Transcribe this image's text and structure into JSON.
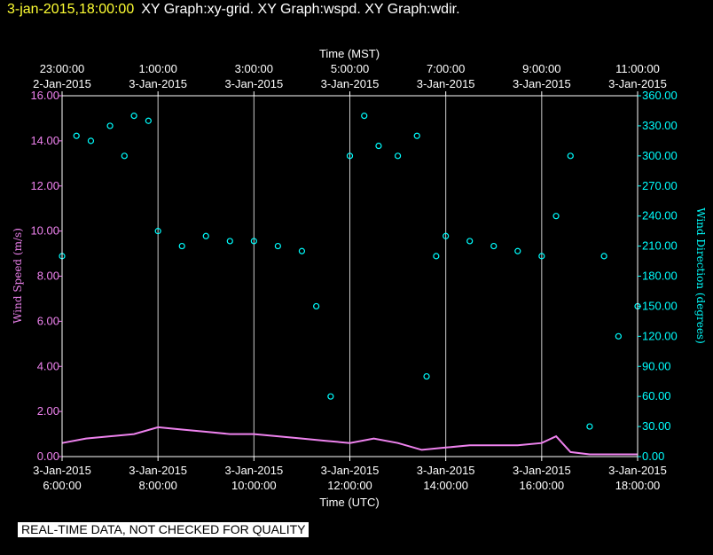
{
  "header": {
    "date_label": "3-jan-2015,18:00:00",
    "graph_titles": "XY Graph:xy-grid.  XY Graph:wspd.  XY Graph:wdir."
  },
  "disclaimer": "REAL-TIME DATA, NOT CHECKED FOR QUALITY",
  "colors": {
    "wind_speed": "#ee82ee",
    "wind_direction": "#00ffff",
    "axes": "#ffffff",
    "header_date": "#ffff33"
  },
  "chart_data": {
    "type": "scatter",
    "top_axis": {
      "label": "Time (MST)",
      "ticks": [
        {
          "time": "23:00:00",
          "date": "2-Jan-2015"
        },
        {
          "time": "1:00:00",
          "date": "3-Jan-2015"
        },
        {
          "time": "3:00:00",
          "date": "3-Jan-2015"
        },
        {
          "time": "5:00:00",
          "date": "3-Jan-2015"
        },
        {
          "time": "7:00:00",
          "date": "3-Jan-2015"
        },
        {
          "time": "9:00:00",
          "date": "3-Jan-2015"
        },
        {
          "time": "11:00:00",
          "date": "3-Jan-2015"
        }
      ]
    },
    "bottom_axis": {
      "label": "Time (UTC)",
      "ticks": [
        {
          "date": "3-Jan-2015",
          "time": "6:00:00"
        },
        {
          "date": "3-Jan-2015",
          "time": "8:00:00"
        },
        {
          "date": "3-Jan-2015",
          "time": "10:00:00"
        },
        {
          "date": "3-Jan-2015",
          "time": "12:00:00"
        },
        {
          "date": "3-Jan-2015",
          "time": "14:00:00"
        },
        {
          "date": "3-Jan-2015",
          "time": "16:00:00"
        },
        {
          "date": "3-Jan-2015",
          "time": "18:00:00"
        }
      ]
    },
    "x_range_utc_hours": [
      6,
      18
    ],
    "left_axis": {
      "label": "Wind Speed (m/s)",
      "range": [
        0,
        16
      ],
      "ticks": [
        "0.00",
        "2.00",
        "4.00",
        "6.00",
        "8.00",
        "10.00",
        "12.00",
        "14.00",
        "16.00"
      ]
    },
    "right_axis": {
      "label": "Wind Direction (degrees)",
      "range": [
        0,
        360
      ],
      "ticks": [
        "0.00",
        "30.00",
        "60.00",
        "90.00",
        "120.00",
        "150.00",
        "180.00",
        "210.00",
        "240.00",
        "270.00",
        "300.00",
        "330.00",
        "360.00"
      ]
    },
    "grid": "vertical lines at each time tick",
    "series": [
      {
        "name": "Wind Speed",
        "axis": "left",
        "marker": "line",
        "x_utc_hours": [
          6.0,
          6.5,
          7.0,
          7.5,
          8.0,
          8.5,
          9.0,
          9.5,
          10.0,
          10.5,
          11.0,
          11.5,
          12.0,
          12.5,
          13.0,
          13.5,
          14.0,
          14.5,
          15.0,
          15.5,
          16.0,
          16.3,
          16.6,
          17.0,
          17.5,
          18.0
        ],
        "values": [
          0.6,
          0.8,
          0.9,
          1.0,
          1.3,
          1.2,
          1.1,
          1.0,
          1.0,
          0.9,
          0.8,
          0.7,
          0.6,
          0.8,
          0.6,
          0.3,
          0.4,
          0.5,
          0.5,
          0.5,
          0.6,
          0.9,
          0.2,
          0.1,
          0.1,
          0.1
        ]
      },
      {
        "name": "Wind Direction",
        "axis": "right",
        "marker": "circle",
        "x_utc_hours": [
          6.0,
          6.3,
          6.6,
          7.0,
          7.3,
          7.5,
          7.8,
          8.0,
          8.5,
          9.0,
          9.5,
          10.0,
          10.5,
          11.0,
          11.3,
          11.6,
          12.0,
          12.3,
          12.6,
          13.0,
          13.4,
          13.6,
          13.8,
          14.0,
          14.5,
          15.0,
          15.5,
          16.0,
          16.3,
          16.6,
          17.0,
          17.3,
          17.6,
          18.0
        ],
        "values": [
          200,
          320,
          315,
          330,
          300,
          340,
          335,
          225,
          210,
          220,
          215,
          215,
          210,
          205,
          150,
          60,
          300,
          340,
          310,
          300,
          320,
          80,
          200,
          220,
          215,
          210,
          205,
          200,
          240,
          300,
          30,
          200,
          120,
          150
        ]
      }
    ]
  }
}
